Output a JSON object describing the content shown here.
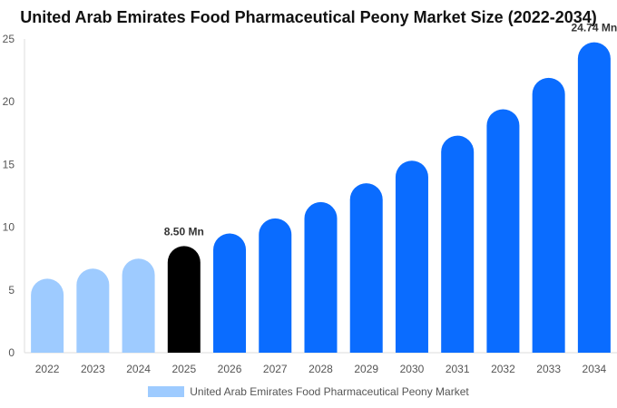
{
  "chart_data": {
    "type": "bar",
    "title": "United Arab Emirates Food Pharmaceutical Peony Market Size (2022-2034)",
    "categories": [
      "2022",
      "2023",
      "2024",
      "2025",
      "2026",
      "2027",
      "2028",
      "2029",
      "2030",
      "2031",
      "2032",
      "2033",
      "2034"
    ],
    "series": [
      {
        "name": "United Arab Emirates Food Pharmaceutical Peony Market",
        "values": [
          5.9,
          6.7,
          7.5,
          8.5,
          9.5,
          10.7,
          12.0,
          13.5,
          15.3,
          17.3,
          19.4,
          21.9,
          24.74
        ]
      }
    ],
    "data_labels": {
      "3": "8.50 Mn",
      "12": "24.74 Mn"
    },
    "ylim": [
      0,
      25
    ],
    "yticks": [
      0,
      5,
      10,
      15,
      20,
      25
    ],
    "xlabel": "",
    "ylabel": "",
    "grid": false,
    "legend_position": "bottom",
    "colors": {
      "historic": "#9ecbff",
      "current": "#000000",
      "forecast": "#0a6cff"
    }
  }
}
